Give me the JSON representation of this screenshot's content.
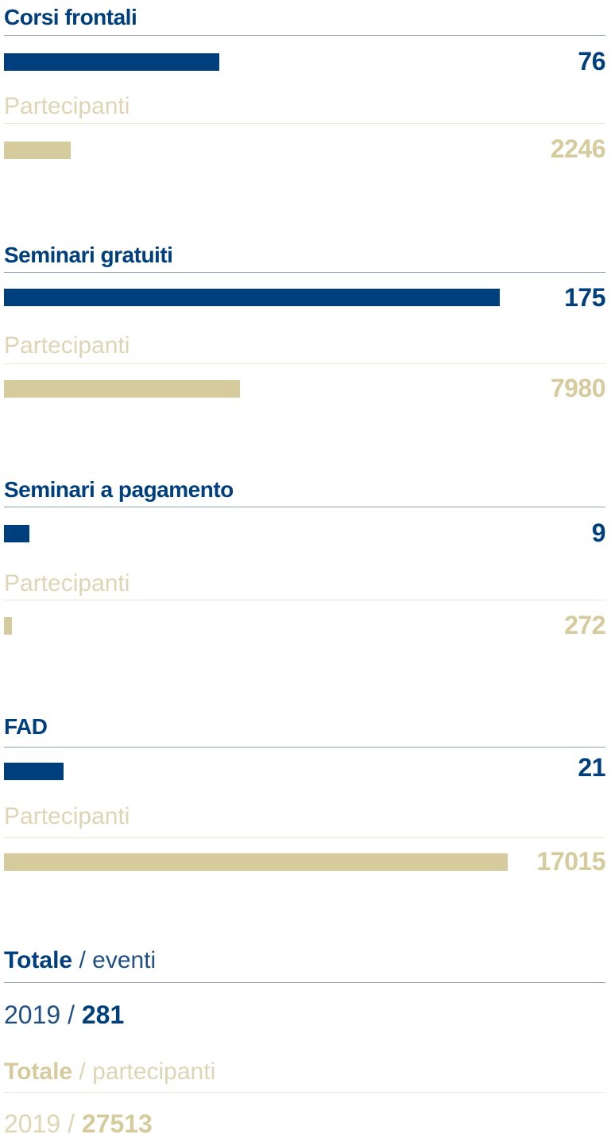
{
  "chart_data": {
    "type": "bar",
    "categories": [
      "Corsi frontali",
      "Seminari gratuiti",
      "Seminari a pagamento",
      "FAD"
    ],
    "series": [
      {
        "values": [
          76,
          175,
          9,
          21
        ],
        "color": "#003f7d"
      },
      {
        "name": "Partecipanti",
        "values": [
          2246,
          7980,
          272,
          17015
        ],
        "color": "#d6cb9c"
      }
    ]
  },
  "sections": [
    {
      "title": "Corsi frontali",
      "events": "76",
      "sub_label": "Partecipanti",
      "participants": "2246"
    },
    {
      "title": "Seminari gratuiti",
      "events": "175",
      "sub_label": "Partecipanti",
      "participants": "7980"
    },
    {
      "title": "Seminari a pagamento",
      "events": "9",
      "sub_label": "Partecipanti",
      "participants": "272"
    },
    {
      "title": "FAD",
      "events": "21",
      "sub_label": "Partecipanti",
      "participants": "17015"
    }
  ],
  "totals": {
    "events_label_bold": "Totale",
    "events_label_rest": " / eventi",
    "events_year": "2019",
    "events_sep": " / ",
    "events_value": "281",
    "participants_label_bold": "Totale",
    "participants_label_rest": " / partecipanti",
    "participants_year": "2019",
    "participants_sep": " / ",
    "participants_value": "27513"
  },
  "colors": {
    "blue": "#003f7d",
    "gold": "#d6cb9c"
  }
}
